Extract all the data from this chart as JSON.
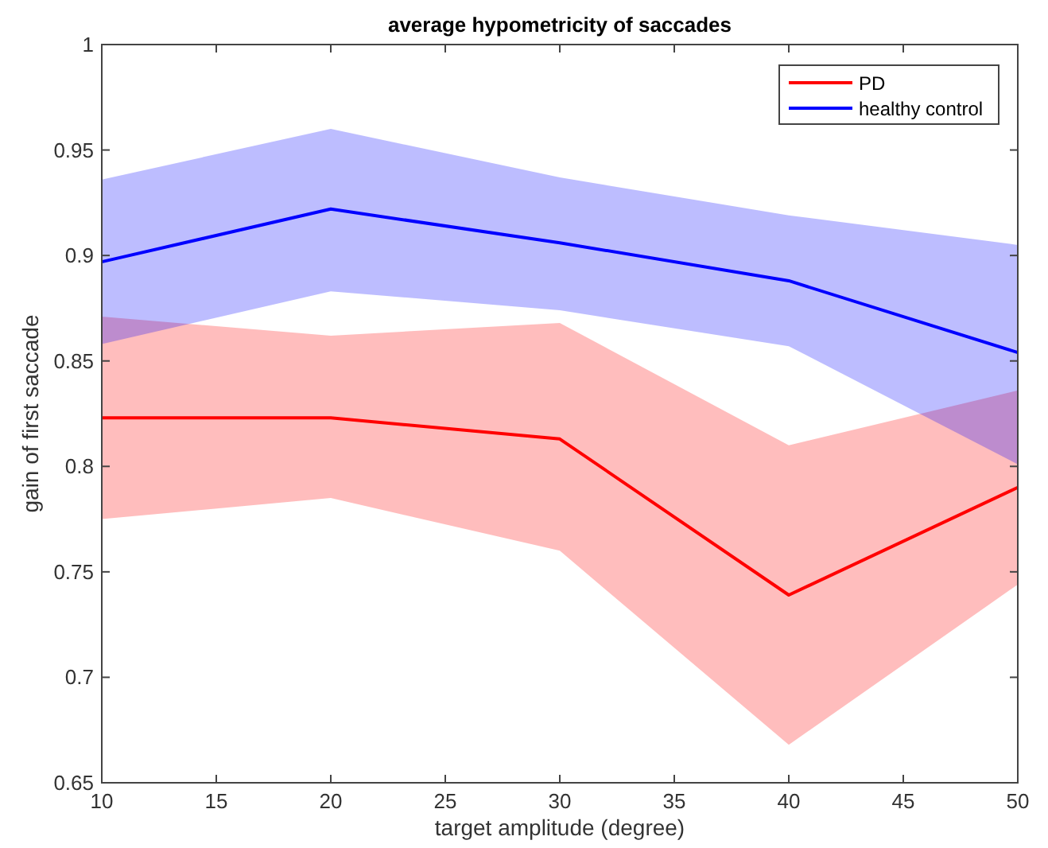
{
  "chart_data": {
    "type": "line",
    "title": "average hypometricity of saccades",
    "xlabel": "target amplitude (degree)",
    "ylabel": "gain of first saccade",
    "x": [
      10,
      20,
      30,
      40,
      50
    ],
    "series": [
      {
        "name": "PD",
        "color": "#ff0000",
        "values": [
          0.823,
          0.823,
          0.813,
          0.739,
          0.79
        ],
        "lower": [
          0.775,
          0.785,
          0.76,
          0.668,
          0.744
        ],
        "upper": [
          0.871,
          0.862,
          0.868,
          0.81,
          0.836
        ]
      },
      {
        "name": "healthy control",
        "color": "#0000ff",
        "values": [
          0.897,
          0.922,
          0.906,
          0.888,
          0.854
        ],
        "lower": [
          0.858,
          0.883,
          0.874,
          0.857,
          0.801
        ],
        "upper": [
          0.936,
          0.96,
          0.937,
          0.919,
          0.905
        ]
      }
    ],
    "xlim": [
      10,
      50
    ],
    "xticks": [
      10,
      15,
      20,
      25,
      30,
      35,
      40,
      45,
      50
    ],
    "ylim": [
      0.65,
      1
    ],
    "yticks": [
      0.65,
      0.7,
      0.75,
      0.8,
      0.85,
      0.9,
      0.95,
      1
    ],
    "legend": "top right",
    "grid": false,
    "marker": "none",
    "line_style": "solid"
  }
}
